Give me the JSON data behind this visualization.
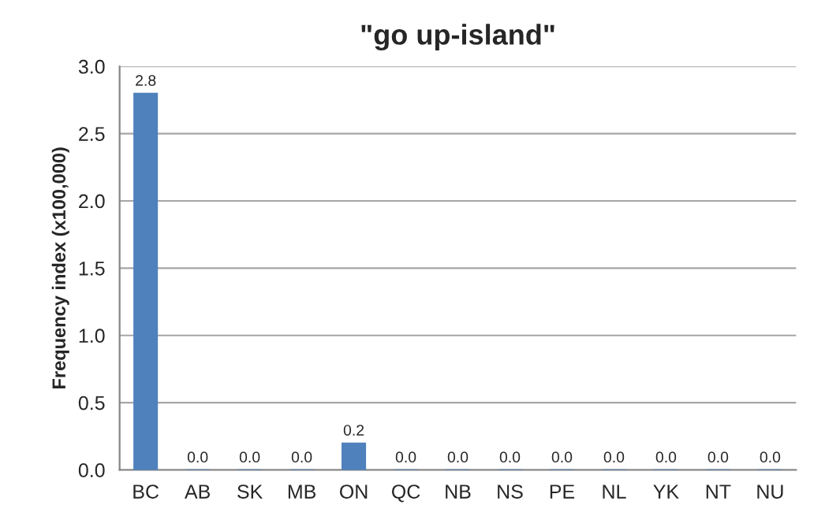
{
  "chart_data": {
    "type": "bar",
    "title": "\"go up-island\"",
    "ylabel": "Frequency index (x100,000)",
    "categories": [
      "BC",
      "AB",
      "SK",
      "MB",
      "ON",
      "QC",
      "NB",
      "NS",
      "PE",
      "NL",
      "YK",
      "NT",
      "NU"
    ],
    "values": [
      2.8,
      0,
      0,
      0,
      0.2,
      0,
      0,
      0,
      0,
      0,
      0,
      0,
      0
    ],
    "value_labels": [
      "2.8",
      "0.0",
      "0.0",
      "0.0",
      "0.2",
      "0.0",
      "0.0",
      "0.0",
      "0.0",
      "0.0",
      "0.0",
      "0.0",
      "0.0"
    ],
    "color": "#4f81bd",
    "ylim": [
      0,
      3
    ],
    "yticks": [
      {
        "value": 0,
        "label": "0.0"
      },
      {
        "value": 0.5,
        "label": "0.5"
      },
      {
        "value": 1,
        "label": "1.0"
      },
      {
        "value": 1.5,
        "label": "1.5"
      },
      {
        "value": 2,
        "label": "2.0"
      },
      {
        "value": 2.5,
        "label": "2.5"
      },
      {
        "value": 3,
        "label": "3.0"
      }
    ],
    "grid": "y",
    "legend": false
  }
}
